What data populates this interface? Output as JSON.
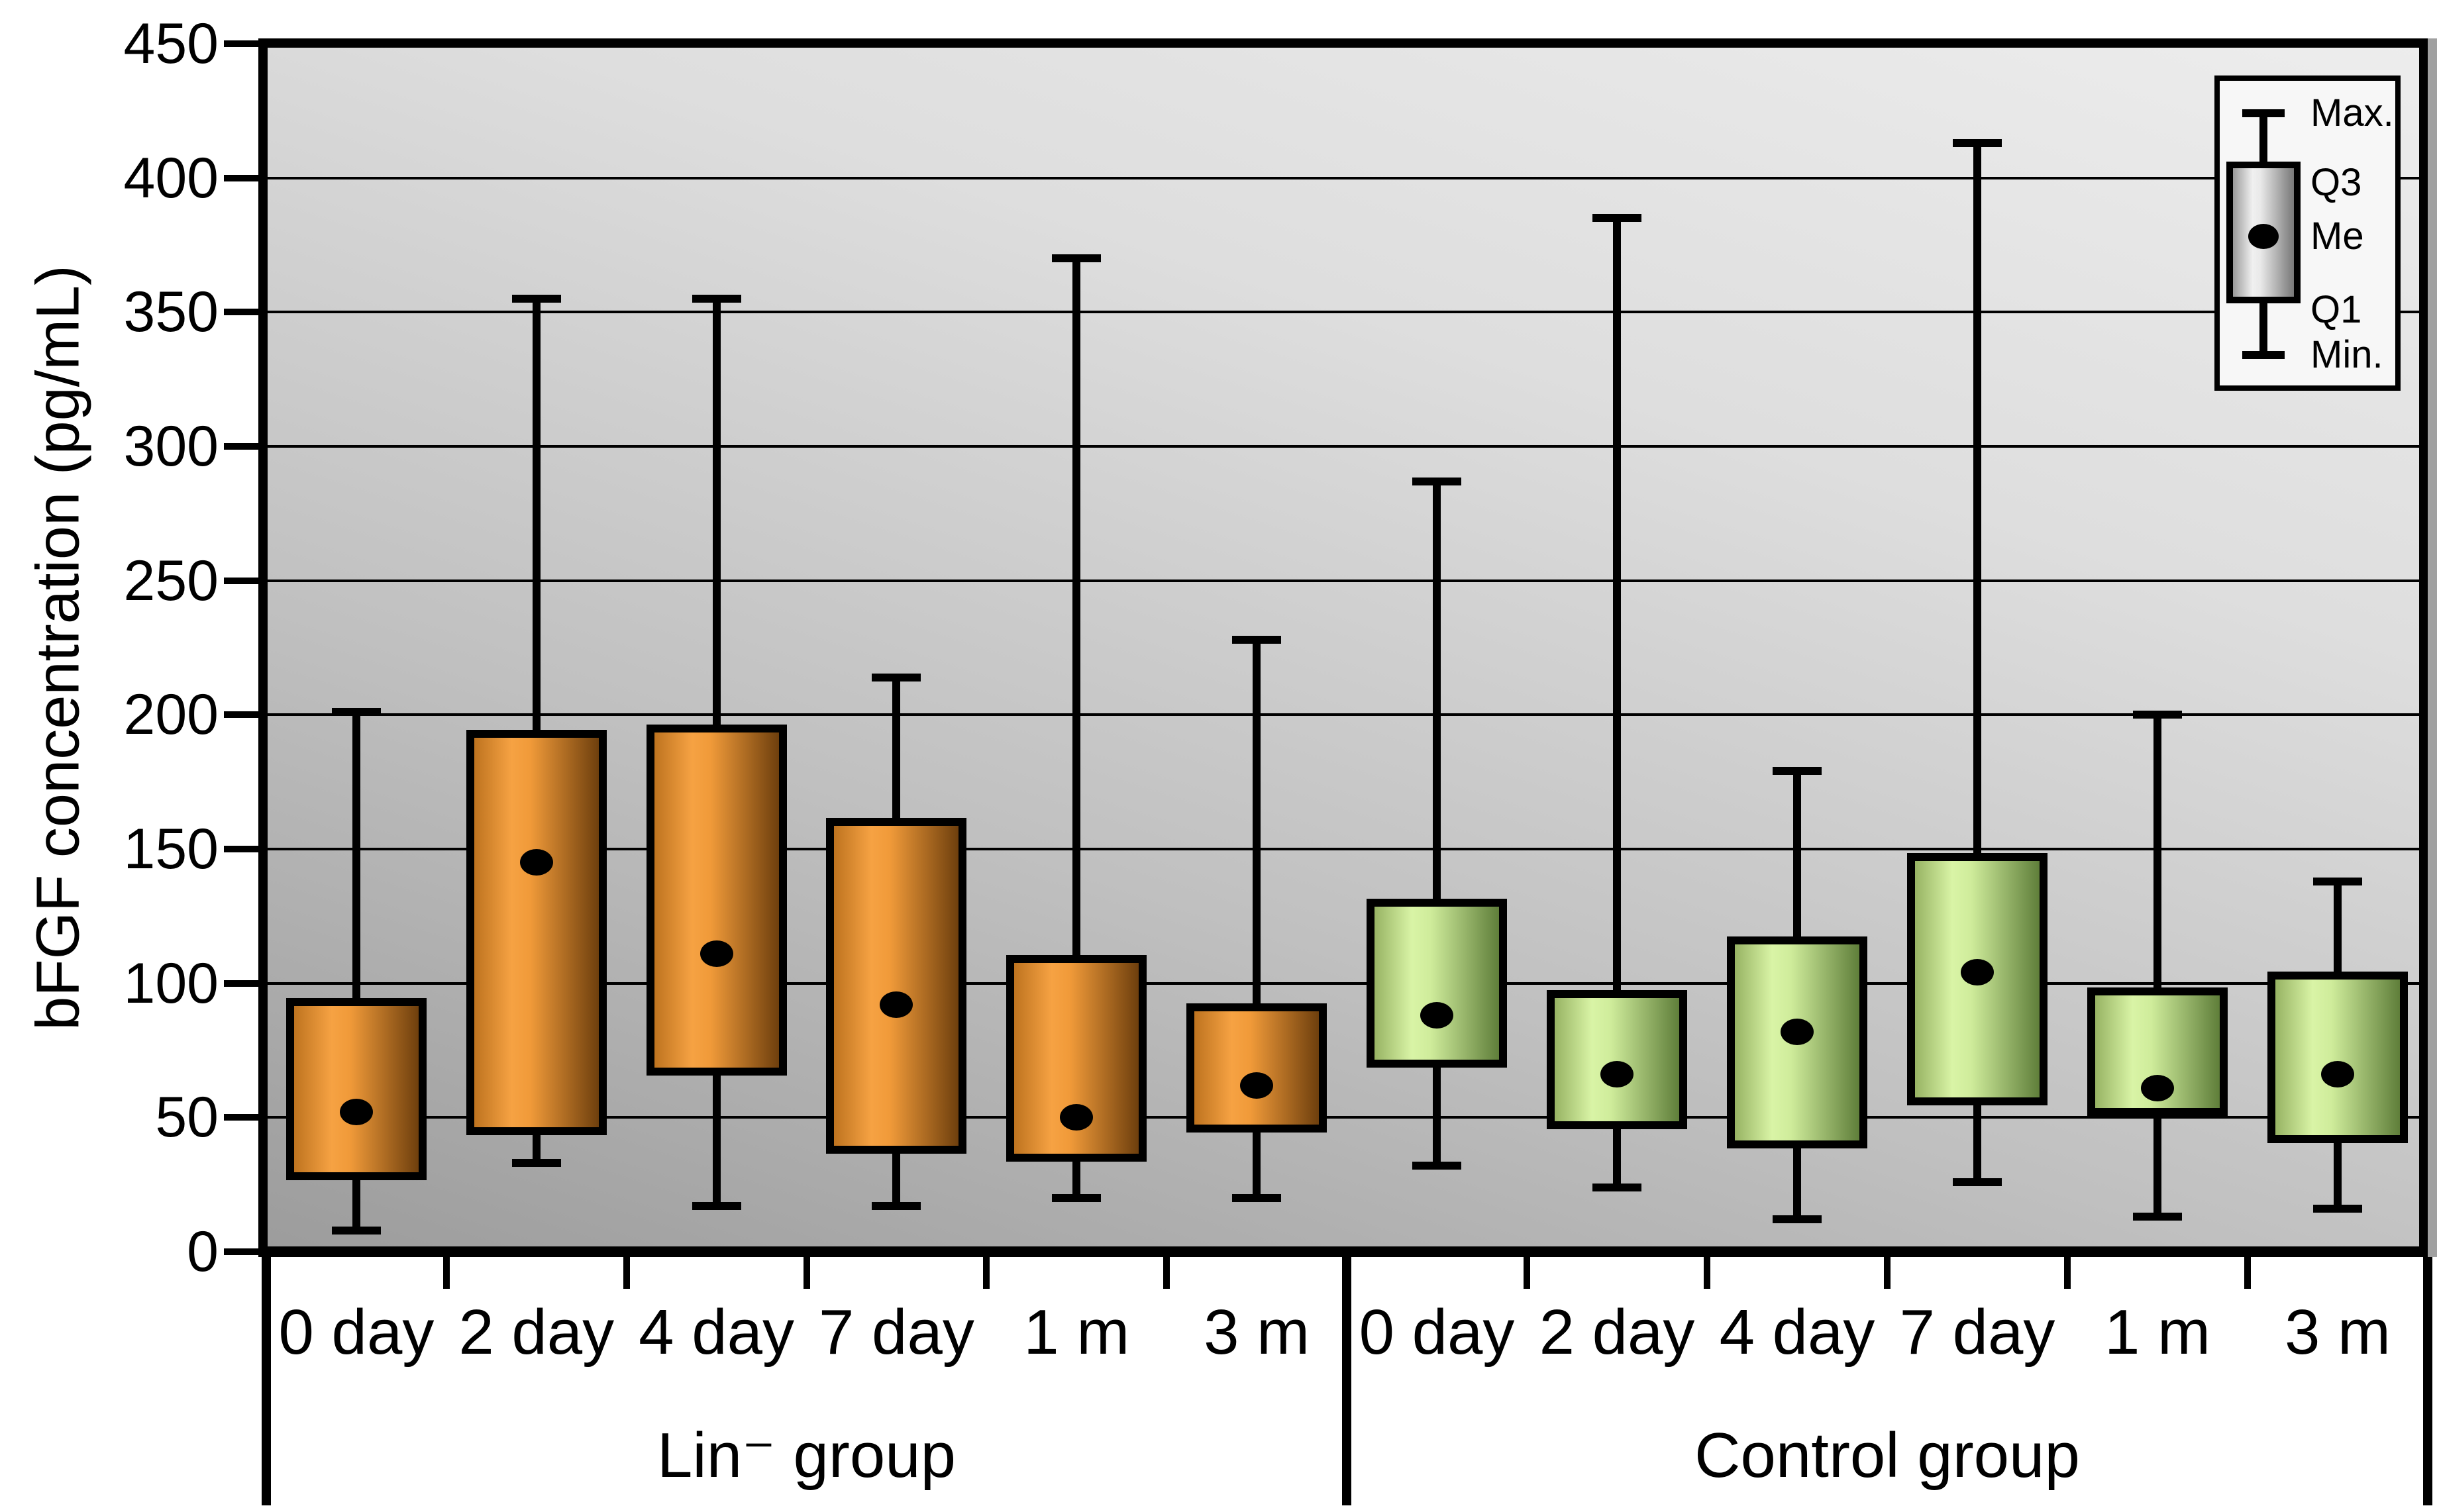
{
  "chart_data": {
    "type": "box",
    "title": "",
    "ylabel": "bFGF concentration (pg/mL)",
    "xlabel": "",
    "ylim": [
      0,
      450
    ],
    "ytick_step": 50,
    "grid": true,
    "y_ticks": [
      "0",
      "50",
      "100",
      "150",
      "200",
      "250",
      "300",
      "350",
      "400",
      "450"
    ],
    "legend": {
      "position": "top-right",
      "entries": [
        "Max.",
        "Q3",
        "Me",
        "Q1",
        "Min."
      ]
    },
    "groups": [
      {
        "name": "Lin⁻ group",
        "box_color_name": "orange",
        "categories": [
          "0 day",
          "2 day",
          "4 day",
          "7 day",
          "1 m",
          "3 m"
        ],
        "stats": [
          {
            "min": 8,
            "q1": 28,
            "median": 52,
            "q3": 93,
            "max": 201
          },
          {
            "min": 33,
            "q1": 45,
            "median": 145,
            "q3": 193,
            "max": 355
          },
          {
            "min": 17,
            "q1": 67,
            "median": 111,
            "q3": 195,
            "max": 355
          },
          {
            "min": 17,
            "q1": 38,
            "median": 92,
            "q3": 160,
            "max": 214
          },
          {
            "min": 20,
            "q1": 35,
            "median": 50,
            "q3": 109,
            "max": 370
          },
          {
            "min": 20,
            "q1": 46,
            "median": 62,
            "q3": 91,
            "max": 228
          }
        ]
      },
      {
        "name": "Control group",
        "box_color_name": "green",
        "categories": [
          "0 day",
          "2 day",
          "4 day",
          "7 day",
          "1 m",
          "3 m"
        ],
        "stats": [
          {
            "min": 32,
            "q1": 70,
            "median": 88,
            "q3": 130,
            "max": 287
          },
          {
            "min": 24,
            "q1": 47,
            "median": 66,
            "q3": 96,
            "max": 385
          },
          {
            "min": 12,
            "q1": 40,
            "median": 82,
            "q3": 116,
            "max": 179
          },
          {
            "min": 26,
            "q1": 56,
            "median": 104,
            "q3": 147,
            "max": 413
          },
          {
            "min": 13,
            "q1": 52,
            "median": 61,
            "q3": 97,
            "max": 200
          },
          {
            "min": 16,
            "q1": 42,
            "median": 66,
            "q3": 103,
            "max": 138
          }
        ]
      }
    ],
    "colors": {
      "orange_edge_left": "#BE731F",
      "orange_highlight": "#F6A243",
      "orange_edge_right": "#6E3F0D",
      "green_edge_left": "#97B363",
      "green_highlight": "#D9F4A6",
      "green_edge_right": "#5F7E3A",
      "gray_edge_left": "#9A9A9A",
      "gray_highlight": "#F0F0F0",
      "gray_edge_right": "#787878",
      "plot_bg_top": "#EDEDED",
      "plot_bg_bottom": "#9C9C9C",
      "frame": "#000000",
      "legend_bg": "#F7F7F7",
      "median_dot": "#000000"
    }
  }
}
